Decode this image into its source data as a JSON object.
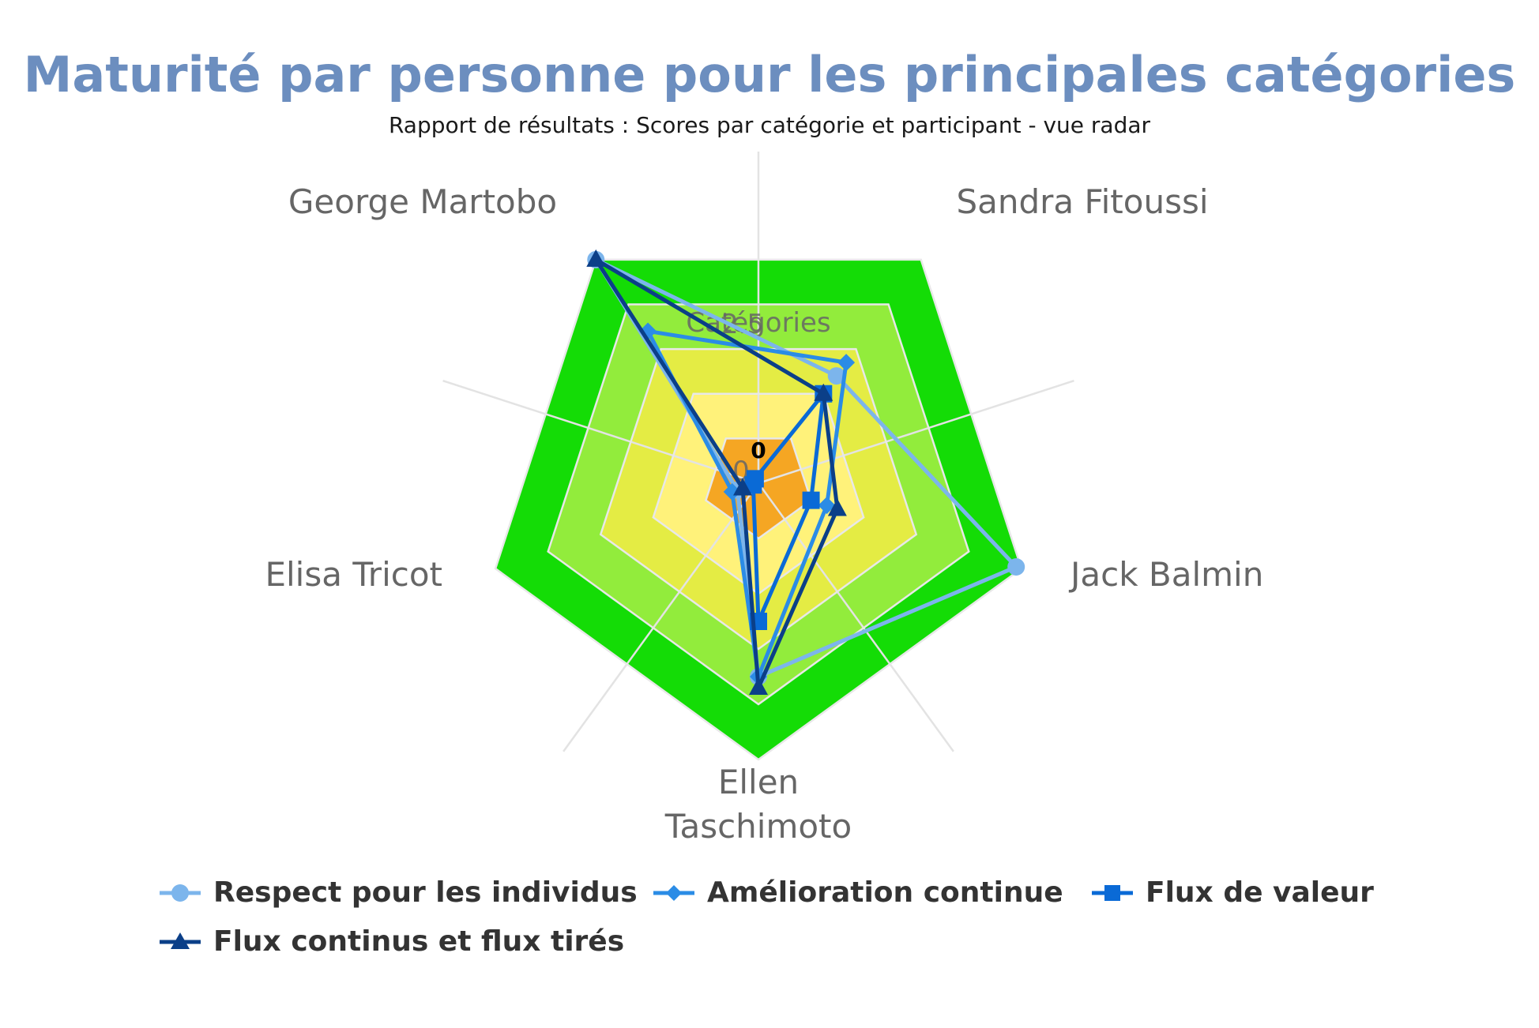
{
  "header": {
    "title": "Maturité par personne pour les principales catégories",
    "subtitle": "Rapport de résultats : Scores par catégorie et participant - vue radar"
  },
  "chart_data": {
    "type": "radar",
    "axis_title": "Catégories",
    "categories": [
      "Sandra Fitoussi",
      "Jack Balmin",
      "Ellen Taschimoto",
      "Elisa Tricot",
      "George Martobo"
    ],
    "axis_label_lines": [
      [
        "Sandra Fitoussi"
      ],
      [
        "Jack Balmin"
      ],
      [
        "Ellen",
        "Taschimoto"
      ],
      [
        "Elisa Tricot"
      ],
      [
        "George Martobo"
      ]
    ],
    "rmax": 5,
    "tick_labels": [
      "0",
      "2.5"
    ],
    "background_bands": [
      {
        "from": 0,
        "to": 1,
        "color": "#f5a623"
      },
      {
        "from": 1,
        "to": 2,
        "color": "#fff27a"
      },
      {
        "from": 2,
        "to": 3,
        "color": "#e4ec44"
      },
      {
        "from": 3,
        "to": 4,
        "color": "#92ec3c"
      },
      {
        "from": 4,
        "to": 5,
        "color": "#14dc06"
      }
    ],
    "series": [
      {
        "name": "Respect pour les individus",
        "marker": "circle",
        "color": "#7cb5ec",
        "values": [
          2.4,
          4.9,
          3.5,
          0.4,
          5.0
        ]
      },
      {
        "name": "Amélioration continue",
        "marker": "diamond",
        "color": "#2b8ce6",
        "values": [
          2.7,
          1.3,
          3.5,
          0.5,
          3.4
        ]
      },
      {
        "name": "Flux de valeur",
        "marker": "square",
        "color": "#0a6ad6",
        "values": [
          2.0,
          1.0,
          2.5,
          0.1,
          0.1
        ]
      },
      {
        "name": "Flux continus et flux tirés",
        "marker": "triangle",
        "color": "#0b3f88",
        "values": [
          2.0,
          1.5,
          3.7,
          0.3,
          5.0
        ]
      }
    ],
    "legend_position": "bottom"
  }
}
